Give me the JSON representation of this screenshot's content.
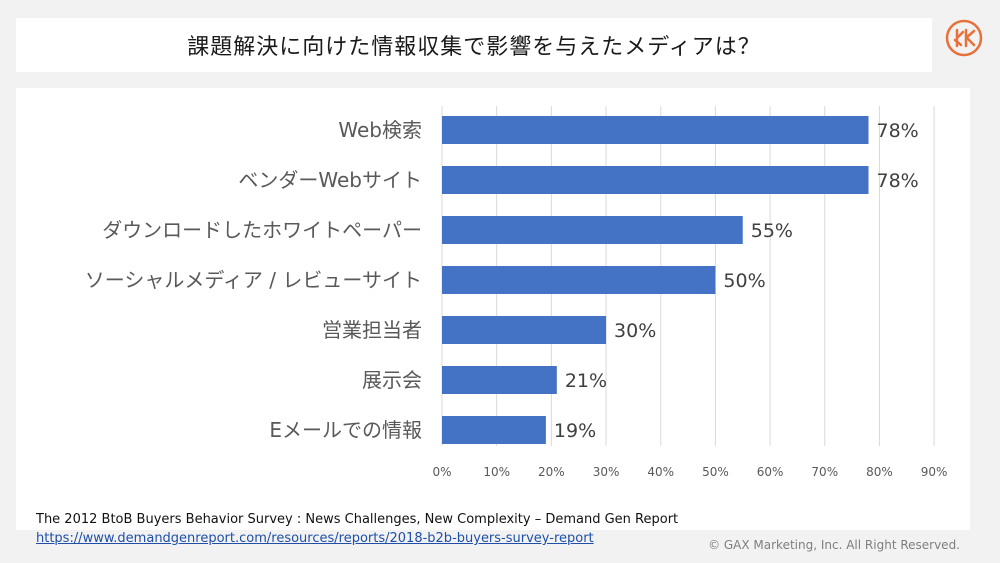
{
  "header": {
    "title": "課題解決に向けた情報収集で影響を与えたメディアは？"
  },
  "logo": {
    "icon": "brand-mark-icon",
    "color": "#e8703a"
  },
  "chart_data": {
    "type": "bar",
    "orientation": "horizontal",
    "categories": [
      "Web検索",
      "ベンダーWebサイト",
      "ダウンロードしたホワイトペーパー",
      "ソーシャルメディア / レビューサイト",
      "営業担当者",
      "展示会",
      "Eメールでの情報"
    ],
    "values": [
      78,
      78,
      55,
      50,
      30,
      21,
      19
    ],
    "value_labels": [
      "78%",
      "78%",
      "55%",
      "50%",
      "30%",
      "21%",
      "19%"
    ],
    "xlim": [
      0,
      90
    ],
    "ticks": [
      "0%",
      "10%",
      "20%",
      "30%",
      "40%",
      "50%",
      "60%",
      "70%",
      "80%",
      "90%"
    ],
    "bar_color": "#4472c4",
    "grid": true
  },
  "footer": {
    "source": "The 2012 BtoB Buyers Behavior Survey : News Challenges, New Complexity – Demand Gen Report",
    "url": "https://www.demandgenreport.com/resources/reports/2018-b2b-buyers-survey-report",
    "copyright": "© GAX Marketing, Inc. All Right Reserved."
  }
}
